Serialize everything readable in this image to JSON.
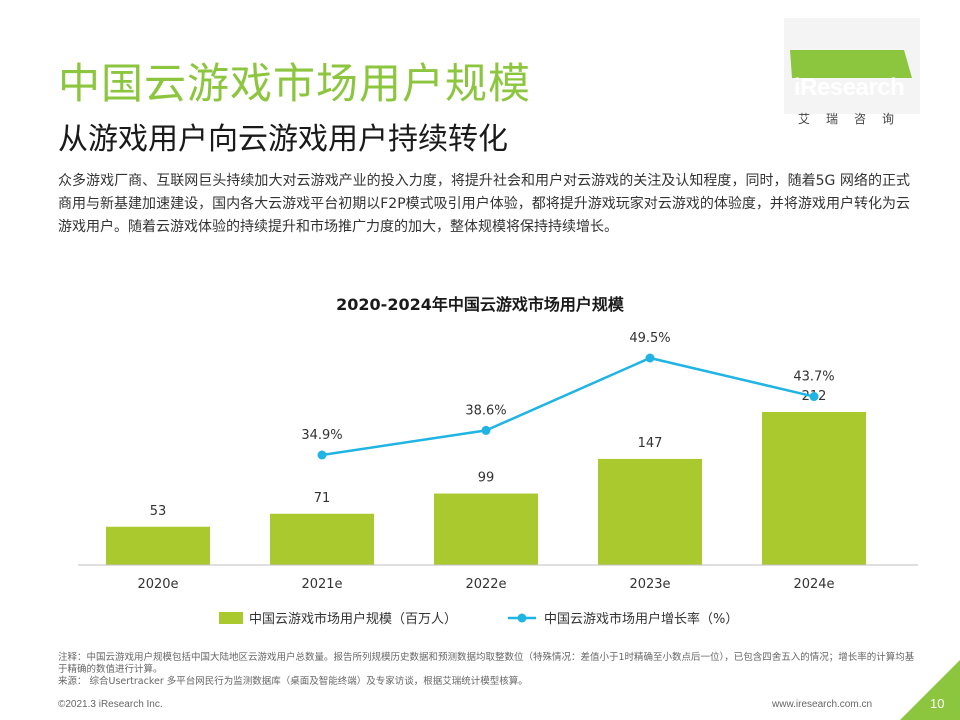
{
  "header": {
    "title": "中国云游戏市场用户规模",
    "subtitle": "从游戏用户向云游戏用户持续转化"
  },
  "logo": {
    "text": "iResearch",
    "subtext": "艾瑞咨询"
  },
  "description": "众多游戏厂商、互联网巨头持续加大对云游戏产业的投入力度，将提升社会和用户对云游戏的关注及认知程度，同时，随着5G 网络的正式商用与新基建加速建设，国内各大云游戏平台初期以F2P模式吸引用户体验，都将提升游戏玩家对云游戏的体验度，并将游戏用户转化为云游戏用户。随着云游戏体验的持续提升和市场推广力度的加大，整体规模将保持持续增长。",
  "chart_data": {
    "type": "bar",
    "title": "2020-2024年中国云游戏市场用户规模",
    "categories": [
      "2020e",
      "2021e",
      "2022e",
      "2023e",
      "2024e"
    ],
    "series": [
      {
        "name": "中国云游戏市场用户规模（百万人）",
        "type": "bar",
        "color": "#a9c92e",
        "values": [
          53,
          71,
          99,
          147,
          212
        ],
        "labels": [
          "53",
          "71",
          "99",
          "147",
          "212"
        ]
      },
      {
        "name": "中国云游戏市场用户增长率（%）",
        "type": "line",
        "color": "#1fb4e3",
        "values": [
          null,
          34.9,
          38.6,
          49.5,
          43.7
        ],
        "labels": [
          "",
          "34.9%",
          "38.6%",
          "49.5%",
          "43.7%"
        ]
      }
    ],
    "legend_position": "bottom",
    "grid": false
  },
  "notes": {
    "line1": "注释：中国云游戏用户规模包括中国大陆地区云游戏用户总数量。报告所列规模历史数据和预测数据均取整数位（特殊情况：差值小于1时精确至小数点后一位），已包含四舍五入的情况；增长率的计算均基于精确的数值进行计算。",
    "line2": "来源：  综合Usertracker 多平台网民行为监测数据库（桌面及智能终端）及专家访谈，根据艾瑞统计模型核算。"
  },
  "footer": {
    "copyright": "©2021.3 iResearch Inc.",
    "url": "www.iresearch.com.cn",
    "page": "10"
  }
}
